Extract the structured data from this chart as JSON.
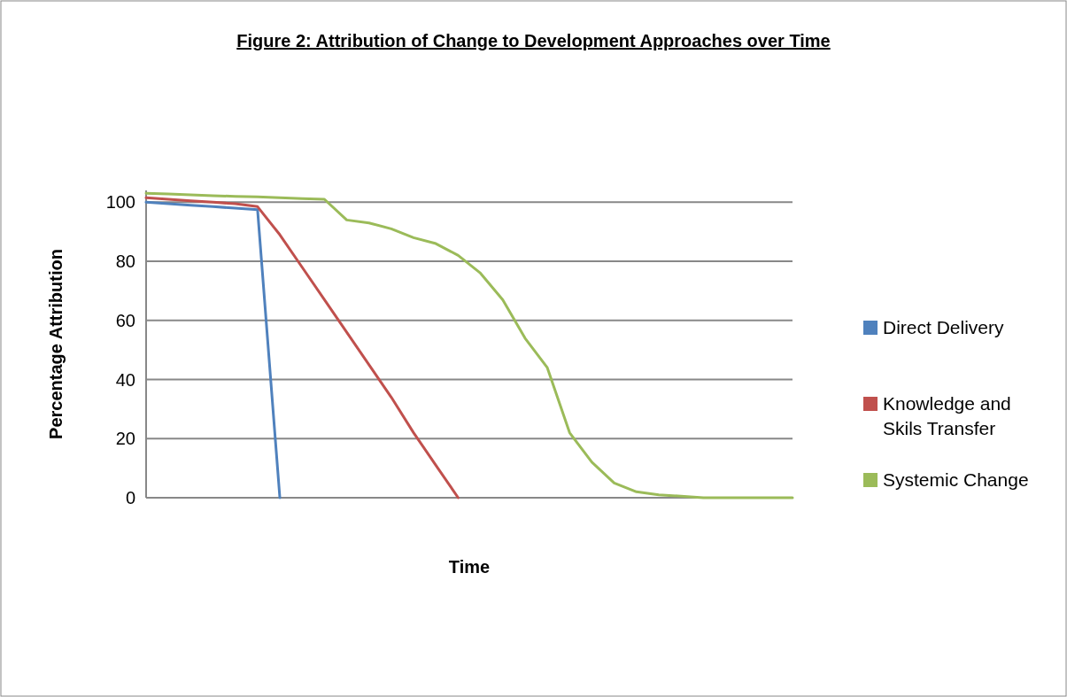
{
  "chart_data": {
    "type": "line",
    "title": "Figure 2: Attribution of Change to Development Approaches over Time",
    "xlabel": "Time",
    "ylabel": "Percentage Attribution",
    "categories": [
      null,
      null,
      null,
      null,
      null,
      null,
      null,
      null,
      null,
      null,
      null,
      null,
      null,
      null,
      null,
      null,
      null,
      null,
      null,
      null,
      null,
      null,
      null,
      null,
      null,
      null,
      null,
      null,
      null,
      null
    ],
    "series": [
      {
        "name": "Direct Delivery",
        "color": "#4f81bd",
        "values": [
          100,
          99.5,
          99,
          98.5,
          98,
          97.5,
          0,
          null,
          null,
          null,
          null,
          null,
          null,
          null,
          null,
          null,
          null,
          null,
          null,
          null,
          null,
          null,
          null,
          null,
          null,
          null,
          null,
          null,
          null,
          null
        ]
      },
      {
        "name": "Knowledge and Skils Transfer",
        "color": "#c0504d",
        "values": [
          101.5,
          101,
          100.5,
          100,
          99.5,
          98.5,
          89,
          78,
          67,
          56,
          45,
          34,
          22,
          11,
          0,
          null,
          null,
          null,
          null,
          null,
          null,
          null,
          null,
          null,
          null,
          null,
          null,
          null,
          null,
          null
        ]
      },
      {
        "name": "Systemic Change",
        "color": "#9bbb59",
        "values": [
          103,
          102.8,
          102.5,
          102.2,
          102,
          101.8,
          101.5,
          101.2,
          101,
          94,
          93,
          91,
          88,
          86,
          82,
          76,
          67,
          54,
          44,
          22,
          12,
          5,
          2,
          1,
          0.5,
          0,
          0,
          0,
          0,
          0
        ]
      }
    ],
    "ylim": [
      0,
      104
    ],
    "yticks": [
      0,
      20,
      40,
      60,
      80,
      100
    ],
    "grid": "y",
    "legend": "right",
    "tick_labels": "y",
    "marker": "none",
    "line_style": "solid"
  }
}
